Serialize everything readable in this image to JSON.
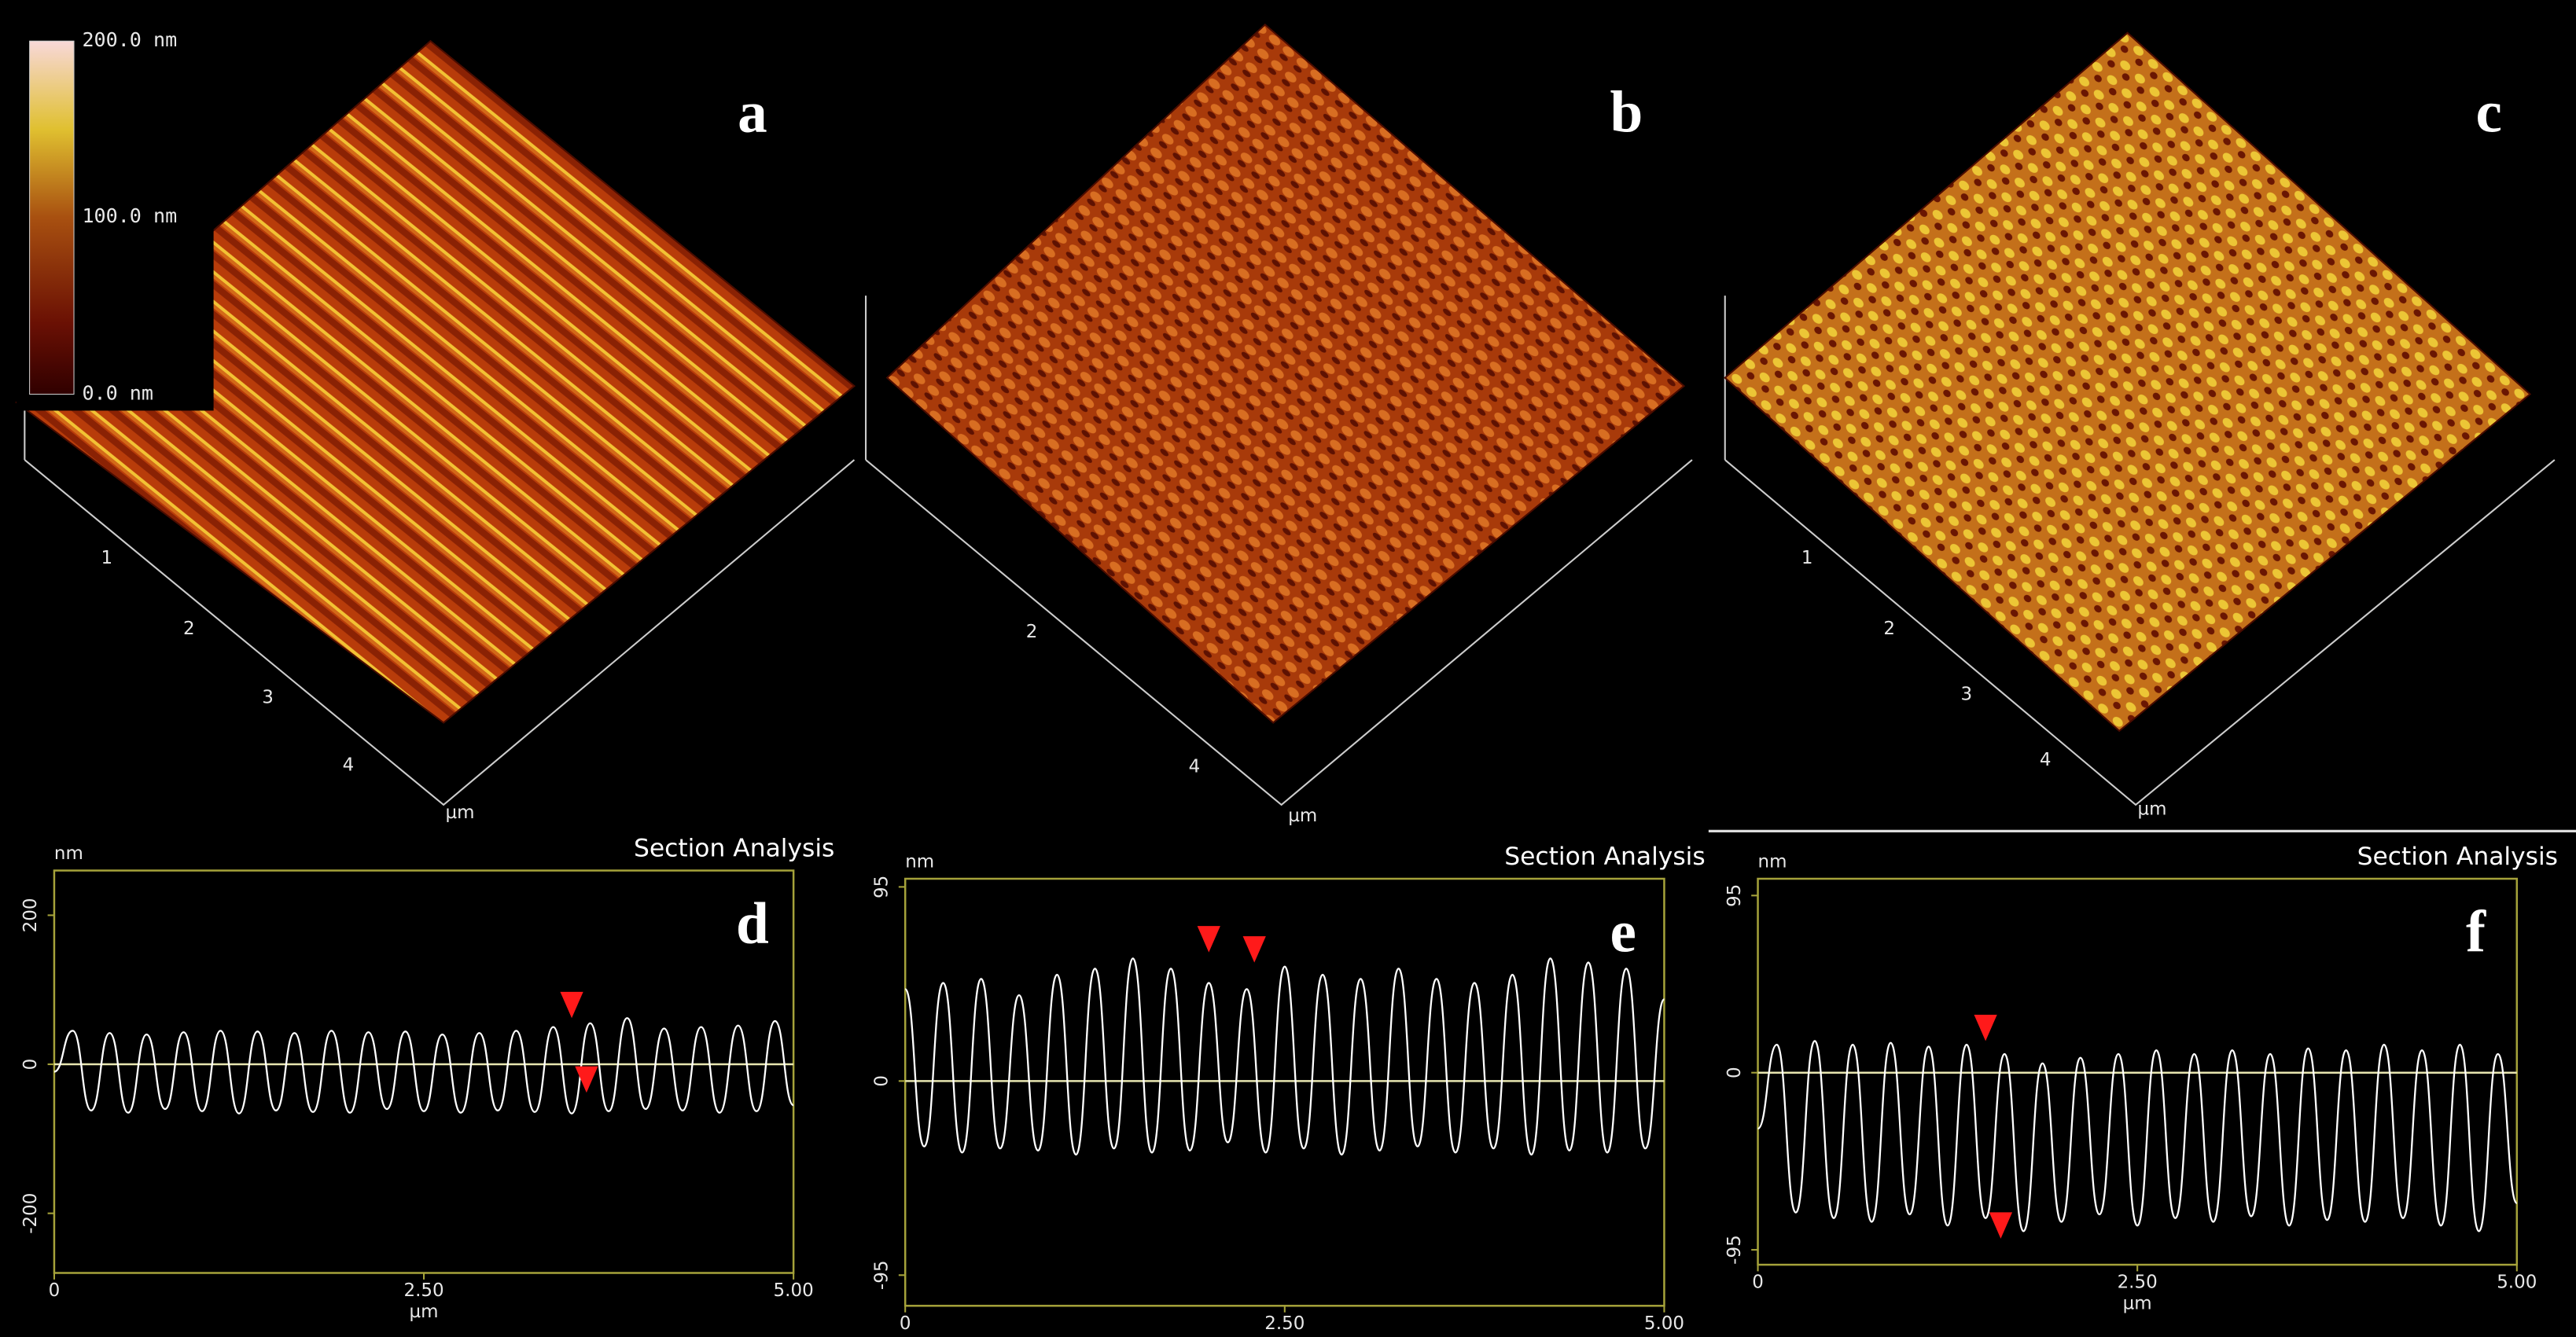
{
  "surfaces": [
    {
      "letter": "a",
      "axis_labels": [
        "1",
        "2",
        "3",
        "4"
      ],
      "unit": "µm"
    },
    {
      "letter": "b",
      "axis_labels": [
        "2",
        "4"
      ],
      "unit": "µm"
    },
    {
      "letter": "c",
      "axis_labels": [
        "1",
        "2",
        "3",
        "4"
      ],
      "unit": "µm"
    }
  ],
  "colorbar": {
    "labels": [
      "200.0 nm",
      "100.0 nm",
      "0.0 nm"
    ]
  },
  "chart_data": [
    {
      "type": "line",
      "title": "Section Analysis",
      "letter": "d",
      "ylabel": "nm",
      "xlabel": "µm",
      "xlim": [
        0,
        5
      ],
      "ylim": [
        -280,
        260
      ],
      "xticks": [
        0,
        {
          "value": 2.5,
          "label": "2.50"
        },
        {
          "value": 5,
          "label": "5.00"
        }
      ],
      "yticks": [
        -200,
        0,
        200
      ],
      "frame_color": "#a5a23a",
      "zero_line": true,
      "marker_color": "#ff1a1a",
      "series": [
        {
          "color": "#ffffff",
          "x": [
            0,
            0.125,
            0.25,
            0.375,
            0.5,
            0.625,
            0.75,
            0.875,
            1,
            1.125,
            1.25,
            1.375,
            1.5,
            1.625,
            1.75,
            1.875,
            2,
            2.125,
            2.25,
            2.375,
            2.5,
            2.625,
            2.75,
            2.875,
            3,
            3.125,
            3.25,
            3.375,
            3.5,
            3.625,
            3.75,
            3.875,
            4,
            4.125,
            4.25,
            4.375,
            4.5,
            4.625,
            4.75,
            4.875,
            5
          ],
          "values": [
            -10,
            45,
            -62,
            42,
            -65,
            40,
            -60,
            43,
            -63,
            45,
            -66,
            44,
            -62,
            42,
            -64,
            45,
            -65,
            43,
            -60,
            44,
            -63,
            40,
            -65,
            42,
            -62,
            45,
            -64,
            50,
            -66,
            55,
            -63,
            62,
            -60,
            48,
            -62,
            50,
            -65,
            52,
            -63,
            58,
            -55
          ]
        }
      ],
      "markers": [
        {
          "x": 3.5,
          "y": 62
        },
        {
          "x": 3.6,
          "y": -38
        }
      ]
    },
    {
      "type": "line",
      "title": "Section Analysis",
      "letter": "e",
      "ylabel": "nm",
      "xlabel": "µm",
      "xlim": [
        0,
        5
      ],
      "ylim": [
        -110,
        99
      ],
      "xticks": [
        0,
        {
          "value": 2.5,
          "label": "2.50"
        },
        {
          "value": 5,
          "label": "5.00"
        }
      ],
      "yticks": [
        -95,
        0,
        95
      ],
      "frame_color": "#a5a23a",
      "zero_line": true,
      "marker_color": "#ff1a1a",
      "series": [
        {
          "color": "#ffffff",
          "x": [
            0,
            0.125,
            0.25,
            0.375,
            0.5,
            0.625,
            0.75,
            0.875,
            1,
            1.125,
            1.25,
            1.375,
            1.5,
            1.625,
            1.75,
            1.875,
            2,
            2.125,
            2.25,
            2.375,
            2.5,
            2.625,
            2.75,
            2.875,
            3,
            3.125,
            3.25,
            3.375,
            3.5,
            3.625,
            3.75,
            3.875,
            4,
            4.125,
            4.25,
            4.375,
            4.5,
            4.625,
            4.75,
            4.875,
            5
          ],
          "values": [
            45,
            -32,
            48,
            -35,
            50,
            -33,
            42,
            -34,
            52,
            -36,
            55,
            -33,
            60,
            -35,
            55,
            -34,
            48,
            -30,
            45,
            -35,
            56,
            -33,
            52,
            -36,
            50,
            -34,
            55,
            -32,
            50,
            -35,
            48,
            -33,
            52,
            -36,
            60,
            -34,
            58,
            -35,
            55,
            -33,
            40
          ]
        }
      ],
      "markers": [
        {
          "x": 2.0,
          "y": 63
        },
        {
          "x": 2.3,
          "y": 58
        }
      ]
    },
    {
      "type": "line",
      "title": "Section Analysis",
      "letter": "f",
      "ylabel": "nm",
      "xlabel": "µm",
      "xlim": [
        0,
        5
      ],
      "ylim": [
        -103,
        104
      ],
      "xticks": [
        0,
        {
          "value": 2.5,
          "label": "2.50"
        },
        {
          "value": 5,
          "label": "5.00"
        }
      ],
      "yticks": [
        -95,
        0,
        95
      ],
      "frame_color": "#a5a23a",
      "zero_line": true,
      "marker_color": "#ff1a1a",
      "series": [
        {
          "color": "#ffffff",
          "x": [
            0,
            0.125,
            0.25,
            0.375,
            0.5,
            0.625,
            0.75,
            0.875,
            1,
            1.125,
            1.25,
            1.375,
            1.5,
            1.625,
            1.75,
            1.875,
            2,
            2.125,
            2.25,
            2.375,
            2.5,
            2.625,
            2.75,
            2.875,
            3,
            3.125,
            3.25,
            3.375,
            3.5,
            3.625,
            3.75,
            3.875,
            4,
            4.125,
            4.25,
            4.375,
            4.5,
            4.625,
            4.75,
            4.875,
            5
          ],
          "values": [
            -30,
            15,
            -75,
            17,
            -78,
            15,
            -80,
            16,
            -76,
            14,
            -82,
            15,
            -78,
            10,
            -85,
            5,
            -80,
            8,
            -76,
            10,
            -82,
            12,
            -78,
            10,
            -80,
            12,
            -77,
            10,
            -82,
            13,
            -79,
            12,
            -80,
            15,
            -78,
            12,
            -82,
            15,
            -85,
            10,
            -70
          ]
        }
      ],
      "markers": [
        {
          "x": 1.5,
          "y": 17
        },
        {
          "x": 1.6,
          "y": -89
        }
      ]
    }
  ]
}
